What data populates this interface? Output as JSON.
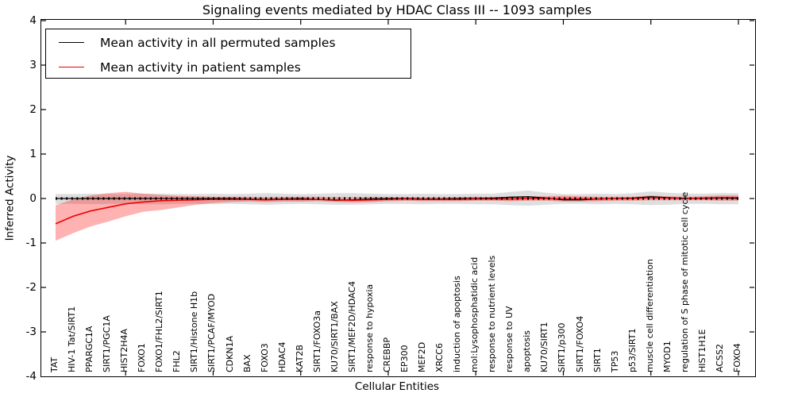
{
  "chart_data": {
    "type": "line",
    "title": "Signaling events mediated by HDAC Class III -- 1093 samples",
    "xlabel": "Cellular Entities",
    "ylabel": "Inferred Activity",
    "ylim": [
      -4,
      4
    ],
    "yticks": [
      "4",
      "3",
      "2",
      "1",
      "0",
      "-1",
      "-2",
      "-3",
      "-4"
    ],
    "grid": false,
    "legend_position": "upper left",
    "reference_line": {
      "y": 0,
      "style": "dotted",
      "color": "#000000"
    },
    "categories": [
      "TAT",
      "HIV-1 Tat/SIRT1",
      "PPARGC1A",
      "SIRT1/PGC1A",
      "HIST2H4A",
      "FOXO1",
      "FOXO1/FHL2/SIRT1",
      "FHL2",
      "SIRT1/Histone H1b",
      "SIRT1/PCAF/MYOD",
      "CDKN1A",
      "BAX",
      "FOXO3",
      "HDAC4",
      "KAT2B",
      "SIRT1/FOXO3a",
      "KU70/SIRT1/BAX",
      "SIRT1/MEF2D/HDAC4",
      "response to hypoxia",
      "CREBBP",
      "EP300",
      "MEF2D",
      "XRCC6",
      "induction of apoptosis",
      "mol:Lysophosphatidic acid",
      "response to nutrient levels",
      "response to UV",
      "apoptosis",
      "KU70/SIRT1",
      "SIRT1/p300",
      "SIRT1/FOXO4",
      "SIRT1",
      "TP53",
      "p53/SIRT1",
      "muscle cell differentiation",
      "MYOD1",
      "regulation of S phase of mitotic cell cycle",
      "HIST1H1E",
      "ACSS2",
      "FOXO4"
    ],
    "series": [
      {
        "name": "Mean activity in all permuted samples",
        "color": "#000000",
        "band_color": "rgba(0,0,0,0.13)",
        "values": [
          0,
          0,
          0,
          0,
          0,
          0,
          0,
          0,
          0,
          0,
          0,
          -0.01,
          -0.02,
          -0.01,
          0,
          -0.02,
          -0.04,
          -0.03,
          -0.01,
          0,
          0,
          -0.01,
          -0.01,
          0,
          0,
          0.01,
          0.03,
          0.04,
          0.01,
          -0.03,
          -0.03,
          -0.01,
          0,
          0.01,
          0.04,
          0.02,
          0,
          0,
          0.01,
          0
        ],
        "band_upper": [
          0.1,
          0.1,
          0.11,
          0.1,
          0.1,
          0.11,
          0.11,
          0.1,
          0.1,
          0.11,
          0.1,
          0.11,
          0.12,
          0.11,
          0.1,
          0.11,
          0.12,
          0.12,
          0.11,
          0.1,
          0.1,
          0.11,
          0.1,
          0.1,
          0.11,
          0.11,
          0.15,
          0.18,
          0.13,
          0.1,
          0.1,
          0.11,
          0.1,
          0.12,
          0.16,
          0.13,
          0.11,
          0.11,
          0.12,
          0.12
        ],
        "band_lower": [
          -0.12,
          -0.12,
          -0.13,
          -0.12,
          -0.12,
          -0.13,
          -0.13,
          -0.12,
          -0.12,
          -0.13,
          -0.12,
          -0.13,
          -0.14,
          -0.13,
          -0.12,
          -0.13,
          -0.14,
          -0.14,
          -0.13,
          -0.12,
          -0.12,
          -0.13,
          -0.12,
          -0.12,
          -0.13,
          -0.13,
          -0.15,
          -0.16,
          -0.14,
          -0.12,
          -0.12,
          -0.13,
          -0.12,
          -0.13,
          -0.15,
          -0.14,
          -0.12,
          -0.12,
          -0.13,
          -0.13
        ]
      },
      {
        "name": "Mean activity in patient samples",
        "color": "#f00000",
        "band_color": "rgba(255,0,0,0.3)",
        "values": [
          -0.57,
          -0.4,
          -0.28,
          -0.2,
          -0.12,
          -0.08,
          -0.05,
          -0.04,
          -0.03,
          -0.02,
          -0.02,
          -0.02,
          -0.03,
          -0.02,
          -0.02,
          -0.02,
          -0.03,
          -0.04,
          -0.03,
          -0.02,
          -0.01,
          -0.02,
          -0.02,
          -0.02,
          -0.01,
          -0.01,
          -0.01,
          0,
          0,
          -0.01,
          -0.01,
          -0.01,
          0,
          0,
          0.02,
          0.01,
          0,
          0.01,
          0.02,
          0.02
        ],
        "band_upper": [
          -0.15,
          -0.02,
          0.07,
          0.12,
          0.15,
          0.11,
          0.08,
          0.06,
          0.05,
          0.04,
          0.04,
          0.04,
          0.03,
          0.04,
          0.04,
          0.04,
          0.03,
          0.03,
          0.04,
          0.03,
          0.03,
          0.03,
          0.03,
          0.03,
          0.04,
          0.03,
          0.04,
          0.05,
          0.05,
          0.06,
          0.05,
          0.04,
          0.04,
          0.04,
          0.07,
          0.05,
          0.04,
          0.05,
          0.07,
          0.07
        ],
        "band_lower": [
          -0.95,
          -0.78,
          -0.63,
          -0.52,
          -0.4,
          -0.3,
          -0.26,
          -0.2,
          -0.14,
          -0.1,
          -0.08,
          -0.07,
          -0.08,
          -0.07,
          -0.07,
          -0.06,
          -0.08,
          -0.09,
          -0.08,
          -0.06,
          -0.05,
          -0.06,
          -0.06,
          -0.06,
          -0.05,
          -0.05,
          -0.06,
          -0.05,
          -0.05,
          -0.07,
          -0.07,
          -0.06,
          -0.05,
          -0.05,
          -0.04,
          -0.04,
          -0.04,
          -0.04,
          -0.05,
          -0.05
        ]
      }
    ]
  }
}
